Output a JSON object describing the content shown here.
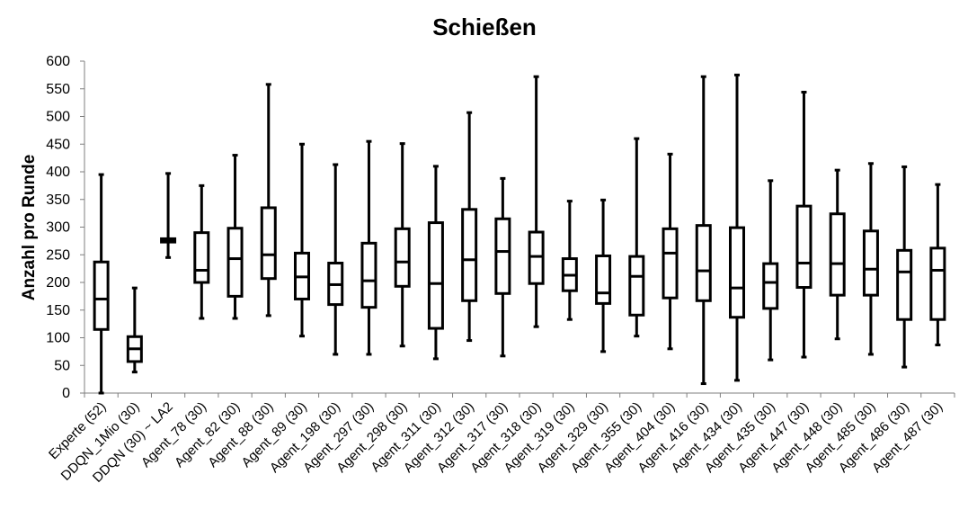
{
  "chart_data": {
    "type": "box",
    "title": "Schießen",
    "xlabel": "",
    "ylabel": "Anzahl pro Runde",
    "ylim": [
      0,
      600
    ],
    "yticks": [
      "0",
      "50",
      "100",
      "150",
      "200",
      "250",
      "300",
      "350",
      "400",
      "450",
      "500",
      "550",
      "600"
    ],
    "grid": false,
    "categories": [
      "Experte (52)",
      "DDQN_1Mio (30)",
      "DDQN (30) ~ LA2",
      "Agent_78 (30)",
      "Agent_82 (30)",
      "Agent_88 (30)",
      "Agent_89 (30)",
      "Agent_198 (30)",
      "Agent_297 (30)",
      "Agent_298 (30)",
      "Agent_311 (30)",
      "Agent_312 (30)",
      "Agent_317 (30)",
      "Agent_318 (30)",
      "Agent_319 (30)",
      "Agent_329 (30)",
      "Agent_355 (30)",
      "Agent_404 (30)",
      "Agent_416 (30)",
      "Agent_434 (30)",
      "Agent_435 (30)",
      "Agent_447 (30)",
      "Agent_448 (30)",
      "Agent_485 (30)",
      "Agent_486 (30)",
      "Agent_487 (30)"
    ],
    "boxes": [
      {
        "min": 0,
        "q1": 115,
        "median": 170,
        "q3": 237,
        "max": 395
      },
      {
        "min": 38,
        "q1": 57,
        "median": 80,
        "q3": 102,
        "max": 190
      },
      {
        "min": 245,
        "q1": 273,
        "median": 276,
        "q3": 279,
        "max": 397
      },
      {
        "min": 135,
        "q1": 200,
        "median": 222,
        "q3": 290,
        "max": 375
      },
      {
        "min": 135,
        "q1": 175,
        "median": 243,
        "q3": 298,
        "max": 430
      },
      {
        "min": 140,
        "q1": 207,
        "median": 250,
        "q3": 335,
        "max": 558
      },
      {
        "min": 103,
        "q1": 170,
        "median": 210,
        "q3": 253,
        "max": 450
      },
      {
        "min": 70,
        "q1": 160,
        "median": 196,
        "q3": 235,
        "max": 413
      },
      {
        "min": 70,
        "q1": 155,
        "median": 203,
        "q3": 271,
        "max": 455
      },
      {
        "min": 85,
        "q1": 193,
        "median": 237,
        "q3": 297,
        "max": 451
      },
      {
        "min": 62,
        "q1": 117,
        "median": 198,
        "q3": 308,
        "max": 410
      },
      {
        "min": 95,
        "q1": 167,
        "median": 241,
        "q3": 332,
        "max": 507
      },
      {
        "min": 67,
        "q1": 180,
        "median": 256,
        "q3": 315,
        "max": 388
      },
      {
        "min": 120,
        "q1": 198,
        "median": 247,
        "q3": 291,
        "max": 572
      },
      {
        "min": 133,
        "q1": 185,
        "median": 213,
        "q3": 243,
        "max": 347
      },
      {
        "min": 75,
        "q1": 162,
        "median": 181,
        "q3": 248,
        "max": 349
      },
      {
        "min": 103,
        "q1": 141,
        "median": 211,
        "q3": 247,
        "max": 460
      },
      {
        "min": 80,
        "q1": 172,
        "median": 253,
        "q3": 297,
        "max": 432
      },
      {
        "min": 17,
        "q1": 167,
        "median": 221,
        "q3": 303,
        "max": 572
      },
      {
        "min": 23,
        "q1": 137,
        "median": 190,
        "q3": 299,
        "max": 575
      },
      {
        "min": 60,
        "q1": 153,
        "median": 200,
        "q3": 234,
        "max": 384
      },
      {
        "min": 65,
        "q1": 191,
        "median": 235,
        "q3": 338,
        "max": 544
      },
      {
        "min": 98,
        "q1": 177,
        "median": 234,
        "q3": 324,
        "max": 403
      },
      {
        "min": 70,
        "q1": 177,
        "median": 224,
        "q3": 293,
        "max": 415
      },
      {
        "min": 47,
        "q1": 133,
        "median": 219,
        "q3": 258,
        "max": 409
      },
      {
        "min": 87,
        "q1": 133,
        "median": 222,
        "q3": 262,
        "max": 377
      }
    ],
    "colors": {
      "stroke": "#000000",
      "fill": "#ffffff"
    }
  }
}
